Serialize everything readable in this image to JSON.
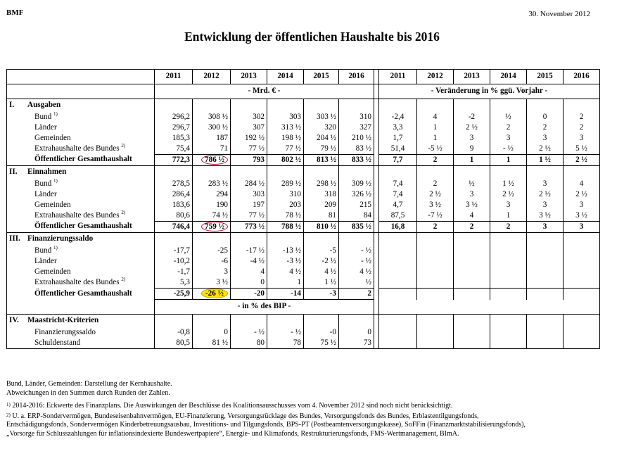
{
  "header": {
    "org": "BMF",
    "date": "30. November 2012"
  },
  "title": "Entwicklung der öffentlichen Haushalte bis 2016",
  "years": [
    "2011",
    "2012",
    "2013",
    "2014",
    "2015",
    "2016"
  ],
  "units": {
    "abs": "- Mrd. € -",
    "chg": "- Veränderung in % ggü. Vorjahr -",
    "bip": "- in % des BIP -"
  },
  "sections": {
    "s1": {
      "roman": "I.",
      "label": "Ausgaben"
    },
    "s2": {
      "roman": "II.",
      "label": "Einnahmen"
    },
    "s3": {
      "roman": "III.",
      "label": "Finanzierungssaldo"
    },
    "s4": {
      "roman": "IV.",
      "label": "Maastricht-Kriterien"
    }
  },
  "rows": {
    "a_bund": {
      "label": "Bund",
      "sup": "1)",
      "abs": [
        "296,2",
        "308 ½",
        "302",
        "303",
        "303 ½",
        "310"
      ],
      "chg": [
        "-2,4",
        "4",
        "-2",
        "½",
        "0",
        "2"
      ]
    },
    "a_laend": {
      "label": "Länder",
      "abs": [
        "296,7",
        "300 ½",
        "307",
        "313 ½",
        "320",
        "327"
      ],
      "chg": [
        "3,3",
        "1",
        "2 ½",
        "2",
        "2",
        "2"
      ]
    },
    "a_gem": {
      "label": "Gemeinden",
      "abs": [
        "185,3",
        "187",
        "192 ½",
        "198 ½",
        "204 ½",
        "210 ½"
      ],
      "chg": [
        "1,7",
        "1",
        "3",
        "3",
        "3",
        "3"
      ]
    },
    "a_extra": {
      "label": "Extrahaushalte des Bundes",
      "sup": "2)",
      "abs": [
        "75,4",
        "71",
        "77 ½",
        "77 ½",
        "79 ½",
        "83 ½"
      ],
      "chg": [
        "51,4",
        "-5 ½",
        "9",
        "- ½",
        "2 ½",
        "5 ½"
      ]
    },
    "a_ges": {
      "label": "Öffentlicher Gesamthaushalt",
      "abs": [
        "772,3",
        "786 ½",
        "793",
        "802 ½",
        "813 ½",
        "833 ½"
      ],
      "chg": [
        "7,7",
        "2",
        "1",
        "1",
        "1 ½",
        "2 ½"
      ]
    },
    "e_bund": {
      "label": "Bund",
      "sup": "1)",
      "abs": [
        "278,5",
        "283 ½",
        "284 ½",
        "289 ½",
        "298 ½",
        "309 ½"
      ],
      "chg": [
        "7,4",
        "2",
        "½",
        "1 ½",
        "3",
        "4"
      ]
    },
    "e_laend": {
      "label": "Länder",
      "abs": [
        "286,4",
        "294",
        "303",
        "310",
        "318",
        "326 ½"
      ],
      "chg": [
        "7,4",
        "2 ½",
        "3",
        "2 ½",
        "2 ½",
        "2 ½"
      ]
    },
    "e_gem": {
      "label": "Gemeinden",
      "abs": [
        "183,6",
        "190",
        "197",
        "203",
        "209",
        "215"
      ],
      "chg": [
        "4,7",
        "3 ½",
        "3 ½",
        "3",
        "3",
        "3"
      ]
    },
    "e_extra": {
      "label": "Extrahaushalte des Bundes",
      "sup": "2)",
      "abs": [
        "80,6",
        "74 ½",
        "77 ½",
        "78 ½",
        "81",
        "84"
      ],
      "chg": [
        "87,5",
        "-7 ½",
        "4",
        "1",
        "3 ½",
        "3 ½"
      ]
    },
    "e_ges": {
      "label": "Öffentlicher Gesamthaushalt",
      "abs": [
        "746,4",
        "759 ½",
        "773 ½",
        "788 ½",
        "810 ½",
        "835 ½"
      ],
      "chg": [
        "16,8",
        "2",
        "2",
        "2",
        "3",
        "3"
      ]
    },
    "f_bund": {
      "label": "Bund",
      "sup": "1)",
      "abs": [
        "-17,7",
        "-25",
        "-17 ½",
        "-13 ½",
        "-5",
        "- ½"
      ]
    },
    "f_laend": {
      "label": "Länder",
      "abs": [
        "-10,2",
        "-6",
        "-4 ½",
        "-3 ½",
        "-2 ½",
        "- ½"
      ]
    },
    "f_gem": {
      "label": "Gemeinden",
      "abs": [
        "-1,7",
        "3",
        "4",
        "4 ½",
        "4 ½",
        "4 ½"
      ]
    },
    "f_extra": {
      "label": "Extrahaushalte des Bundes",
      "sup": "2)",
      "abs": [
        "5,3",
        "3 ½",
        "0",
        "1",
        "1 ½",
        "½"
      ]
    },
    "f_ges": {
      "label": "Öffentlicher Gesamthaushalt",
      "abs": [
        "-25,9",
        "-26 ½",
        "-20",
        "-14",
        "-3",
        "2"
      ]
    },
    "m_fin": {
      "label": "Finanzierungssaldo",
      "abs": [
        "-0,8",
        "0",
        "- ½",
        "- ½",
        "-0",
        "0"
      ]
    },
    "m_sch": {
      "label": "Schuldenstand",
      "abs": [
        "80,5",
        "81 ½",
        "80",
        "78",
        "75 ½",
        "73"
      ]
    }
  },
  "notes": {
    "n1": "Bund, Länder, Gemeinden: Darstellung der Kernhaushalte.",
    "n2": "Abweichungen in den Summen durch Runden der Zahlen.",
    "fn1_mark": "1)",
    "fn1": "2014-2016: Eckwerte des Finanzplans. Die Auswirkungen der Beschlüsse des Koalitionsausschusses vom 4. November 2012 sind noch nicht berücksichtigt.",
    "fn2_mark": "2)",
    "fn2a": "U. a. ERP-Sondervermögen, Bundeseisenbahnvermögen, EU-Finanzierung, Versorgungsrücklage des Bundes, Versorgungsfonds des Bundes, Erblastentilgungsfonds,",
    "fn2b": "Entschädigungsfonds, Sondervermögen Kinderbetreuungsausbau, Investitions- und Tilgungsfonds, BPS-PT (Postbeamtenversorgungskasse), SoFFin (Finanzmarktstabilisierungsfonds),",
    "fn2c": "„Vorsorge für Schlusszahlungen für inflationsindexierte Bundeswertpapiere“, Energie- und Klimafonds, Restrukturierungsfonds, FMS-Wertmanagement, BImA."
  },
  "highlights": {
    "red_circle": "#c8102e",
    "yellow_marker": "#ffe600"
  }
}
